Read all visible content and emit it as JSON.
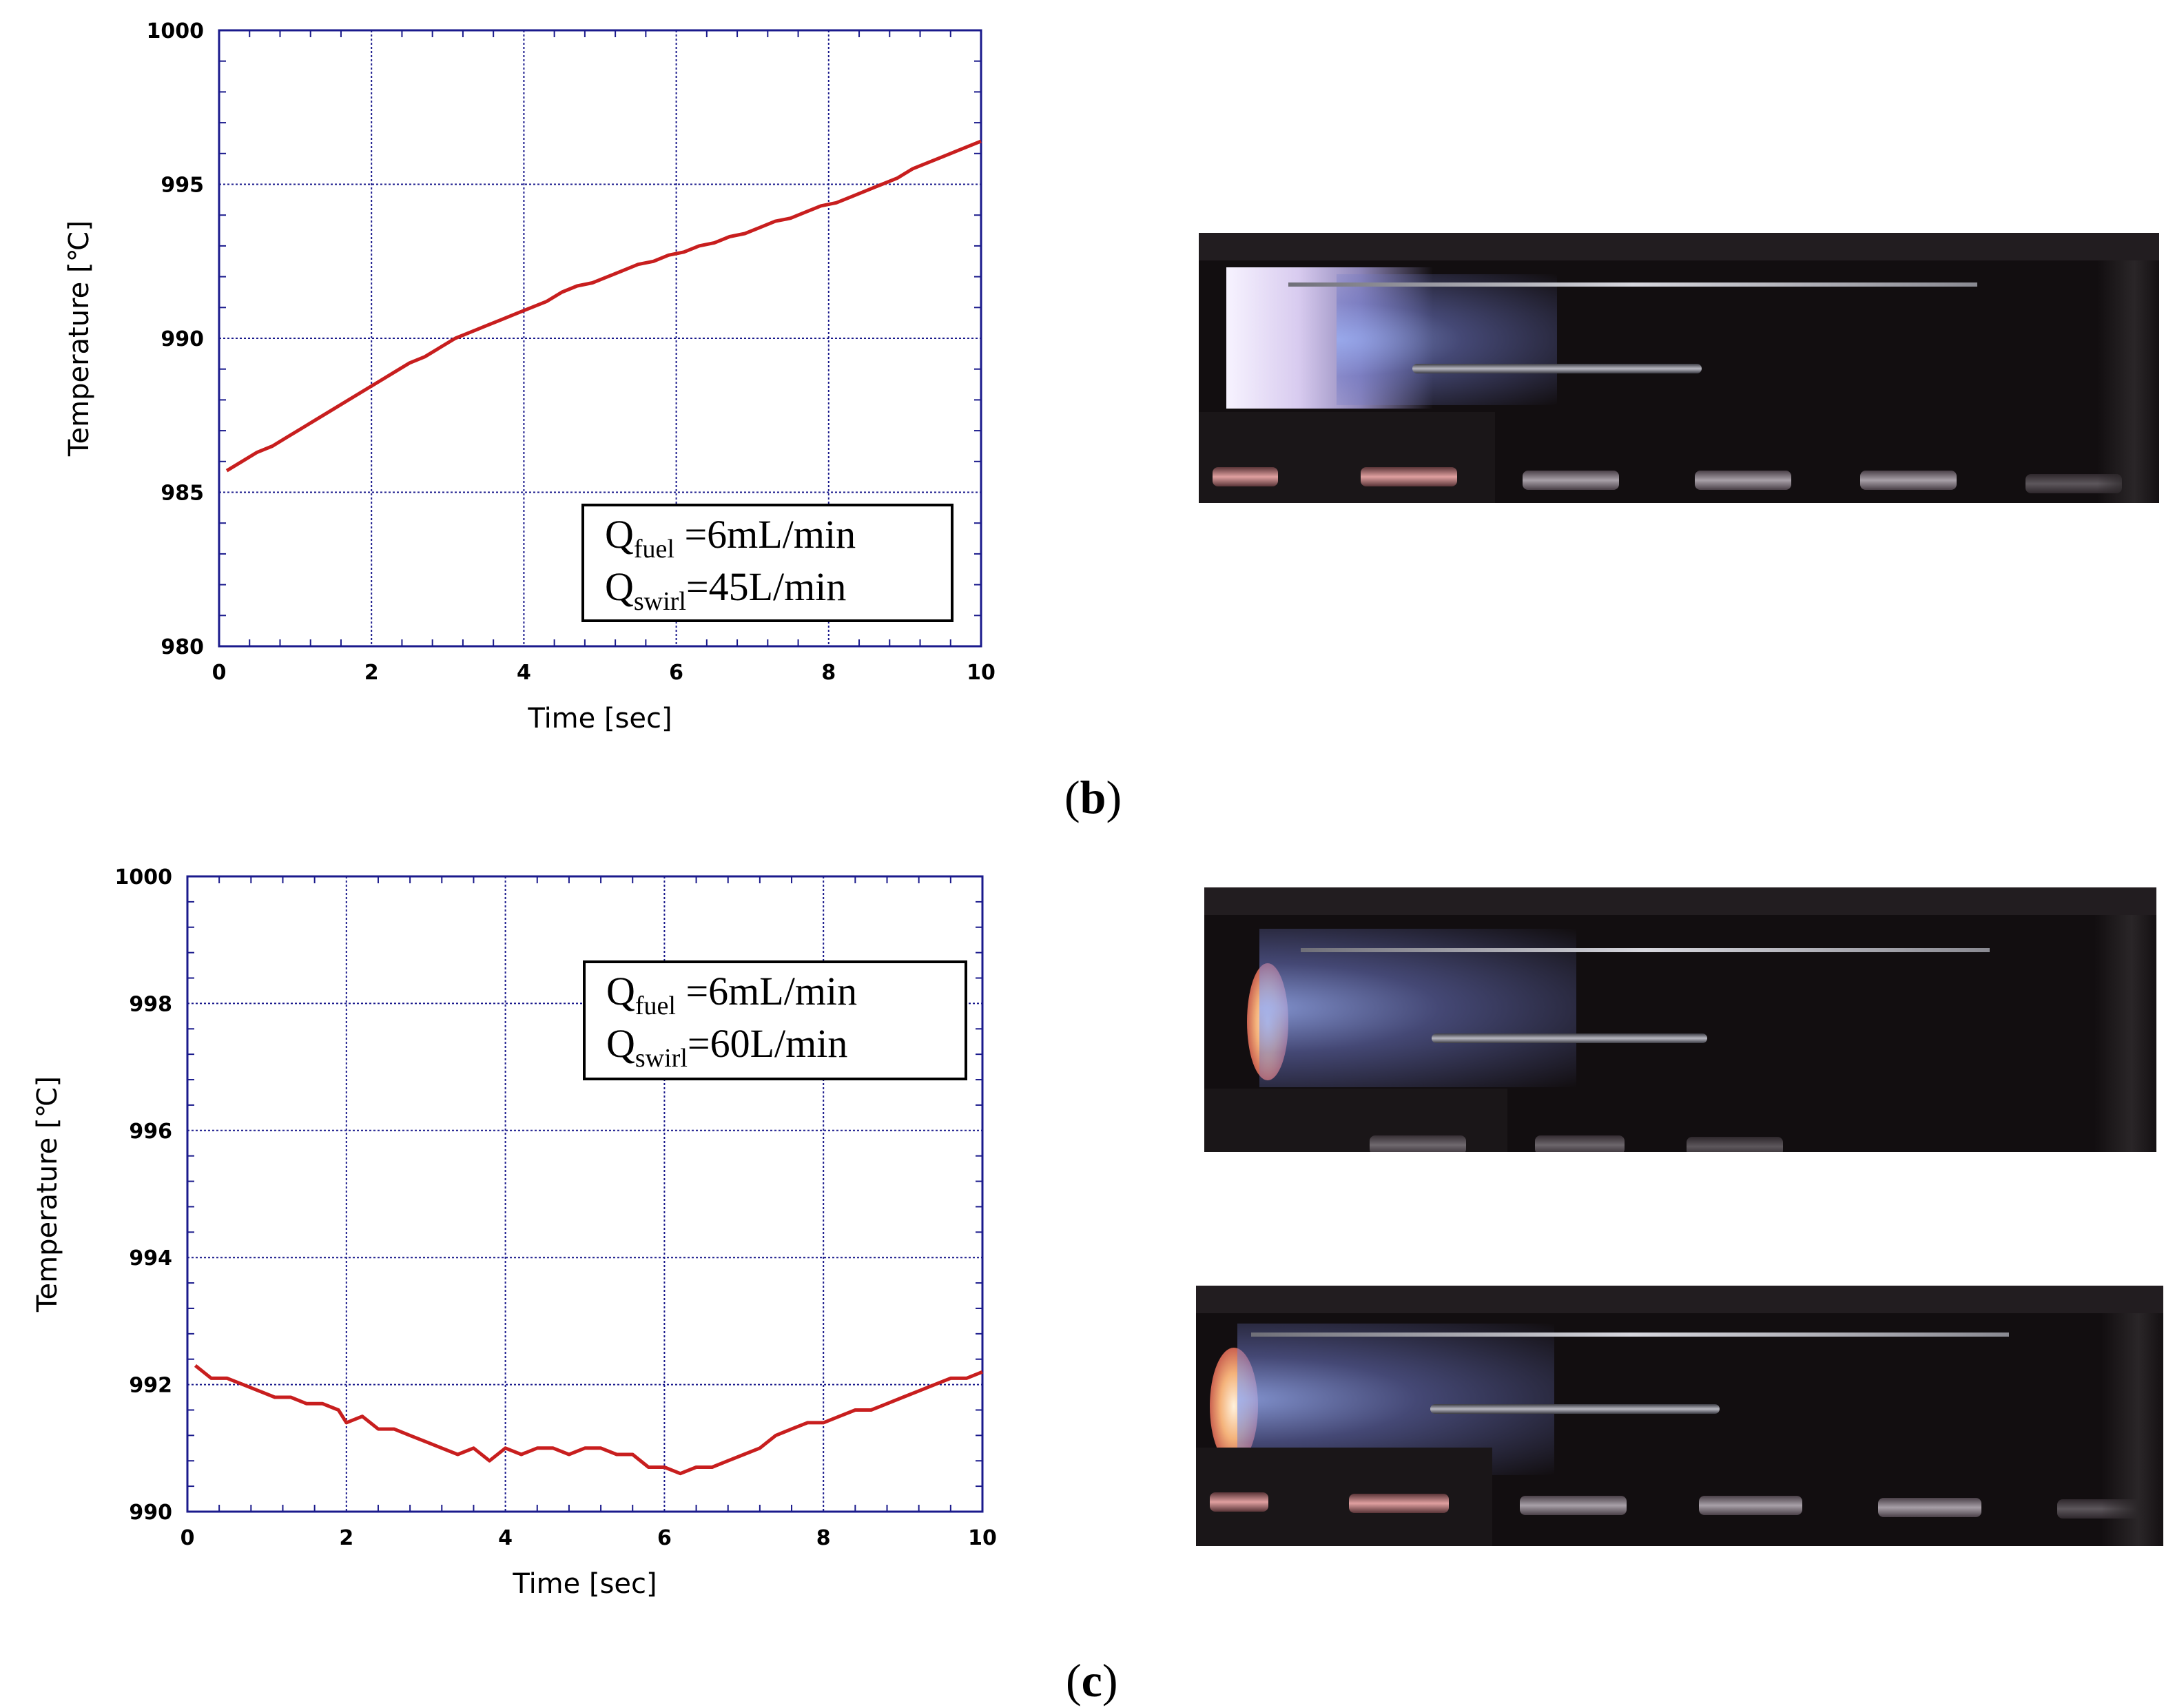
{
  "colors": {
    "axis": "#1a1a8c",
    "grid": "#1a1a8c",
    "line": "#c81e1e",
    "legend_border": "#000000"
  },
  "chart_data": [
    {
      "id": "b",
      "type": "line",
      "panel_label": "b",
      "xlabel": "Time  [sec]",
      "ylabel": "Temperature  [℃]",
      "xlim": [
        0,
        10
      ],
      "ylim": [
        980,
        1000
      ],
      "xticks": [
        "0",
        "2",
        "4",
        "6",
        "8",
        "10"
      ],
      "yticks": [
        "980",
        "985",
        "990",
        "995",
        "1000"
      ],
      "grid": true,
      "legend": {
        "placement": "bottom-right",
        "line1": {
          "main": "Q",
          "sub": "fuel",
          "rest": " =6mL/min"
        },
        "line2": {
          "main": "Q",
          "sub": "swirl",
          "rest": "=45L/min"
        }
      },
      "series": [
        {
          "x": [
            0.1,
            0.3,
            0.5,
            0.7,
            0.9,
            1.1,
            1.3,
            1.5,
            1.7,
            1.9,
            2.1,
            2.3,
            2.5,
            2.7,
            2.9,
            3.1,
            3.3,
            3.5,
            3.7,
            3.9,
            4.1,
            4.3,
            4.5,
            4.7,
            4.9,
            5.1,
            5.3,
            5.5,
            5.7,
            5.9,
            6.1,
            6.3,
            6.5,
            6.7,
            6.9,
            7.1,
            7.3,
            7.5,
            7.7,
            7.9,
            8.1,
            8.3,
            8.5,
            8.7,
            8.9,
            9.1,
            9.3,
            9.5,
            9.7,
            10.0
          ],
          "y": [
            985.7,
            986.0,
            986.3,
            986.5,
            986.8,
            987.1,
            987.4,
            987.7,
            988.0,
            988.3,
            988.6,
            988.9,
            989.2,
            989.4,
            989.7,
            990.0,
            990.2,
            990.4,
            990.6,
            990.8,
            991.0,
            991.2,
            991.5,
            991.7,
            991.8,
            992.0,
            992.2,
            992.4,
            992.5,
            992.7,
            992.8,
            993.0,
            993.1,
            993.3,
            993.4,
            993.6,
            993.8,
            993.9,
            994.1,
            994.3,
            994.4,
            994.6,
            994.8,
            995.0,
            995.2,
            995.5,
            995.7,
            995.9,
            996.1,
            996.4
          ]
        }
      ]
    },
    {
      "id": "c",
      "type": "line",
      "panel_label": "c",
      "xlabel": "Time  [sec]",
      "ylabel": "Temperature  [℃]",
      "xlim": [
        0,
        10
      ],
      "ylim": [
        990,
        1000
      ],
      "xticks": [
        "0",
        "2",
        "4",
        "6",
        "8",
        "10"
      ],
      "yticks": [
        "990",
        "992",
        "994",
        "996",
        "998",
        "1000"
      ],
      "grid": true,
      "legend": {
        "placement": "top-right",
        "line1": {
          "main": "Q",
          "sub": "fuel",
          "rest": " =6mL/min"
        },
        "line2": {
          "main": "Q",
          "sub": "swirl",
          "rest": "=60L/min"
        }
      },
      "series": [
        {
          "x": [
            0.1,
            0.3,
            0.5,
            0.7,
            0.9,
            1.1,
            1.3,
            1.5,
            1.7,
            1.9,
            2.0,
            2.2,
            2.4,
            2.6,
            2.8,
            3.0,
            3.2,
            3.4,
            3.6,
            3.8,
            4.0,
            4.2,
            4.4,
            4.6,
            4.8,
            5.0,
            5.2,
            5.4,
            5.6,
            5.8,
            6.0,
            6.2,
            6.4,
            6.6,
            6.8,
            7.0,
            7.2,
            7.4,
            7.6,
            7.8,
            8.0,
            8.2,
            8.4,
            8.6,
            8.8,
            9.0,
            9.2,
            9.4,
            9.6,
            9.8,
            10.0
          ],
          "y": [
            992.3,
            992.1,
            992.1,
            992.0,
            991.9,
            991.8,
            991.8,
            991.7,
            991.7,
            991.6,
            991.4,
            991.5,
            991.3,
            991.3,
            991.2,
            991.1,
            991.0,
            990.9,
            991.0,
            990.8,
            991.0,
            990.9,
            991.0,
            991.0,
            990.9,
            991.0,
            991.0,
            990.9,
            990.9,
            990.7,
            990.7,
            990.6,
            990.7,
            990.7,
            990.8,
            990.9,
            991.0,
            991.2,
            991.3,
            991.4,
            991.4,
            991.5,
            991.6,
            991.6,
            991.7,
            991.8,
            991.9,
            992.0,
            992.1,
            992.1,
            992.2
          ]
        }
      ]
    }
  ]
}
